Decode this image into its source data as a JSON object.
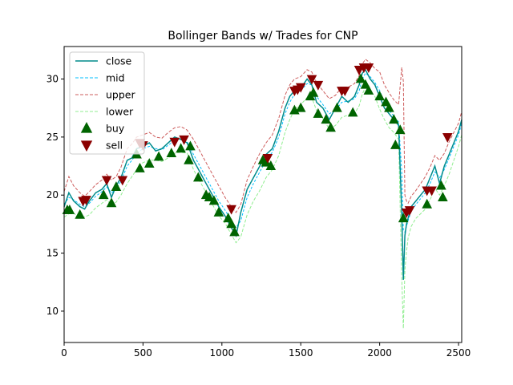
{
  "chart_data": {
    "type": "line",
    "title": "Bollinger Bands w/ Trades for CNP",
    "xlabel": "",
    "ylabel": "",
    "xlim": [
      0,
      2520
    ],
    "ylim": [
      7.3,
      32.8
    ],
    "xticks": [
      0,
      500,
      1000,
      1500,
      2000,
      2500
    ],
    "yticks": [
      10,
      15,
      20,
      25,
      30
    ],
    "grid": false,
    "legend_position": "top-left",
    "colors": {
      "close": "#008b8b",
      "mid": "#00bfff",
      "upper": "#cd5c5c",
      "lower": "#90ee90",
      "buy": "#006400",
      "sell": "#8b0000"
    },
    "series": [
      {
        "name": "close",
        "x": [
          0,
          30,
          60,
          100,
          130,
          160,
          200,
          240,
          270,
          300,
          330,
          360,
          400,
          430,
          460,
          500,
          540,
          580,
          620,
          660,
          700,
          740,
          780,
          820,
          860,
          900,
          940,
          980,
          1020,
          1060,
          1090,
          1120,
          1160,
          1200,
          1240,
          1280,
          1320,
          1360,
          1400,
          1430,
          1460,
          1500,
          1540,
          1570,
          1600,
          1640,
          1680,
          1720,
          1760,
          1800,
          1840,
          1870,
          1890,
          1910,
          1940,
          1970,
          2000,
          2030,
          2060,
          2090,
          2120,
          2140,
          2150,
          2160,
          2170,
          2180,
          2200,
          2230,
          2260,
          2290,
          2320,
          2350,
          2380,
          2410,
          2440,
          2470,
          2500,
          2520
        ],
        "y": [
          19.0,
          20.2,
          19.5,
          19.0,
          18.8,
          19.5,
          20.2,
          20.5,
          21.0,
          19.8,
          20.8,
          21.5,
          23.0,
          23.2,
          24.0,
          24.2,
          24.5,
          23.8,
          24.0,
          24.5,
          25.0,
          24.8,
          24.5,
          23.0,
          22.0,
          21.0,
          20.0,
          19.0,
          18.2,
          17.2,
          16.5,
          18.5,
          20.5,
          21.5,
          22.5,
          23.5,
          24.0,
          25.5,
          27.5,
          28.5,
          29.0,
          29.2,
          30.0,
          29.5,
          28.0,
          27.5,
          26.5,
          27.5,
          28.5,
          28.0,
          28.5,
          29.5,
          30.5,
          30.8,
          30.0,
          29.5,
          28.5,
          27.5,
          27.0,
          26.5,
          26.0,
          18.5,
          12.7,
          16.5,
          17.5,
          18.0,
          19.0,
          19.5,
          20.0,
          20.5,
          21.5,
          22.5,
          21.0,
          22.5,
          23.5,
          24.5,
          25.5,
          26.5
        ]
      },
      {
        "name": "mid",
        "x": [
          0,
          30,
          60,
          100,
          130,
          160,
          200,
          240,
          270,
          300,
          330,
          360,
          400,
          430,
          460,
          500,
          540,
          580,
          620,
          660,
          700,
          740,
          780,
          820,
          860,
          900,
          940,
          980,
          1020,
          1060,
          1090,
          1120,
          1160,
          1200,
          1240,
          1280,
          1320,
          1360,
          1400,
          1430,
          1460,
          1500,
          1540,
          1570,
          1600,
          1640,
          1680,
          1720,
          1760,
          1800,
          1840,
          1870,
          1890,
          1910,
          1940,
          1970,
          2000,
          2030,
          2060,
          2090,
          2120,
          2140,
          2150,
          2160,
          2170,
          2180,
          2200,
          2230,
          2260,
          2290,
          2320,
          2350,
          2380,
          2410,
          2440,
          2470,
          2500,
          2520
        ],
        "y": [
          19.2,
          19.8,
          19.6,
          19.2,
          19.0,
          19.3,
          19.9,
          20.3,
          20.7,
          20.2,
          20.5,
          21.2,
          22.5,
          23.0,
          23.6,
          24.0,
          24.2,
          24.0,
          23.9,
          24.3,
          24.7,
          24.8,
          24.6,
          23.5,
          22.5,
          21.5,
          20.5,
          19.5,
          18.7,
          17.8,
          17.2,
          17.8,
          19.8,
          21.0,
          22.0,
          23.0,
          23.7,
          25.0,
          27.0,
          28.0,
          28.7,
          29.0,
          29.6,
          29.5,
          28.5,
          27.8,
          27.0,
          27.3,
          28.0,
          28.1,
          28.3,
          29.0,
          30.0,
          30.5,
          30.2,
          29.7,
          29.0,
          28.0,
          27.3,
          26.8,
          26.3,
          22.0,
          17.0,
          16.8,
          17.3,
          17.8,
          18.6,
          19.2,
          19.7,
          20.2,
          21.0,
          22.0,
          21.5,
          22.2,
          23.2,
          24.2,
          25.2,
          26.2
        ]
      },
      {
        "name": "upper",
        "x": [
          0,
          30,
          60,
          100,
          130,
          160,
          200,
          240,
          270,
          300,
          330,
          360,
          400,
          430,
          460,
          500,
          540,
          580,
          620,
          660,
          700,
          740,
          780,
          820,
          860,
          900,
          940,
          980,
          1020,
          1060,
          1090,
          1120,
          1160,
          1200,
          1240,
          1280,
          1320,
          1360,
          1400,
          1430,
          1460,
          1500,
          1540,
          1570,
          1600,
          1640,
          1680,
          1720,
          1760,
          1800,
          1840,
          1870,
          1890,
          1910,
          1940,
          1970,
          2000,
          2030,
          2060,
          2090,
          2120,
          2140,
          2150,
          2160,
          2170,
          2180,
          2200,
          2230,
          2260,
          2290,
          2320,
          2350,
          2380,
          2410,
          2440,
          2470,
          2500,
          2520
        ],
        "y": [
          20.3,
          21.6,
          20.8,
          20.2,
          19.9,
          20.3,
          20.9,
          21.3,
          21.8,
          21.3,
          21.6,
          22.4,
          24.0,
          24.4,
          25.0,
          25.2,
          25.4,
          25.0,
          24.9,
          25.4,
          25.8,
          25.9,
          25.6,
          24.8,
          23.8,
          22.8,
          21.8,
          20.8,
          19.8,
          19.0,
          18.5,
          19.2,
          21.3,
          22.5,
          23.6,
          24.5,
          25.2,
          26.6,
          28.6,
          29.5,
          30.0,
          30.2,
          30.8,
          30.6,
          29.7,
          29.0,
          28.3,
          28.6,
          29.3,
          29.3,
          29.6,
          30.3,
          31.3,
          31.7,
          31.4,
          30.9,
          30.6,
          29.5,
          28.8,
          28.2,
          27.8,
          31.0,
          29.8,
          20.0,
          19.5,
          19.3,
          19.9,
          20.4,
          21.0,
          21.6,
          22.4,
          23.4,
          23.0,
          23.6,
          24.6,
          25.4,
          26.2,
          27.2
        ]
      },
      {
        "name": "lower",
        "x": [
          0,
          30,
          60,
          100,
          130,
          160,
          200,
          240,
          270,
          300,
          330,
          360,
          400,
          430,
          460,
          500,
          540,
          580,
          620,
          660,
          700,
          740,
          780,
          820,
          860,
          900,
          940,
          980,
          1020,
          1060,
          1090,
          1120,
          1160,
          1200,
          1240,
          1280,
          1320,
          1360,
          1400,
          1430,
          1460,
          1500,
          1540,
          1570,
          1600,
          1640,
          1680,
          1720,
          1760,
          1800,
          1840,
          1870,
          1890,
          1910,
          1940,
          1970,
          2000,
          2030,
          2060,
          2090,
          2120,
          2140,
          2150,
          2160,
          2170,
          2180,
          2200,
          2230,
          2260,
          2290,
          2320,
          2350,
          2380,
          2410,
          2440,
          2470,
          2500,
          2520
        ],
        "y": [
          18.1,
          18.4,
          18.4,
          18.2,
          18.1,
          18.3,
          18.9,
          19.3,
          19.6,
          19.1,
          19.4,
          20.0,
          21.0,
          21.6,
          22.2,
          22.8,
          23.0,
          23.0,
          22.9,
          23.2,
          23.6,
          23.7,
          23.6,
          22.2,
          21.2,
          20.2,
          19.2,
          18.2,
          17.6,
          16.6,
          15.9,
          16.4,
          18.3,
          19.5,
          20.4,
          21.5,
          22.2,
          23.4,
          25.4,
          26.5,
          27.4,
          27.8,
          28.4,
          28.4,
          27.3,
          26.6,
          25.7,
          26.0,
          26.7,
          26.9,
          27.0,
          27.7,
          28.7,
          29.3,
          29.0,
          28.5,
          27.4,
          26.5,
          25.8,
          25.4,
          24.8,
          13.0,
          8.5,
          13.5,
          15.1,
          16.3,
          17.3,
          18.0,
          18.4,
          18.8,
          19.6,
          20.6,
          20.0,
          20.8,
          21.8,
          23.0,
          24.2,
          25.2
        ]
      },
      {
        "name": "buy",
        "x": [
          20,
          35,
          100,
          250,
          300,
          330,
          460,
          480,
          540,
          600,
          680,
          740,
          790,
          800,
          850,
          900,
          920,
          950,
          980,
          1040,
          1060,
          1080,
          1260,
          1280,
          1310,
          1460,
          1500,
          1560,
          1580,
          1610,
          1660,
          1690,
          1730,
          1830,
          1880,
          1910,
          1930,
          2000,
          2040,
          2060,
          2090,
          2100,
          2130,
          2150,
          2300,
          2390,
          2400
        ],
        "y": [
          18.7,
          18.7,
          18.3,
          20.0,
          19.3,
          20.7,
          23.5,
          22.3,
          22.7,
          23.3,
          23.6,
          24.0,
          23.0,
          24.2,
          21.5,
          20.0,
          19.8,
          19.5,
          18.5,
          18.0,
          17.5,
          16.8,
          23.0,
          22.8,
          22.5,
          27.3,
          27.5,
          28.5,
          28.8,
          27.0,
          26.5,
          25.8,
          27.5,
          27.1,
          30.0,
          29.5,
          29.0,
          28.5,
          28.0,
          27.5,
          26.5,
          24.3,
          25.6,
          18.0,
          19.2,
          20.8,
          19.8
        ]
      },
      {
        "name": "sell",
        "x": [
          120,
          140,
          270,
          370,
          480,
          500,
          700,
          760,
          1060,
          1290,
          1460,
          1480,
          1500,
          1570,
          1610,
          1760,
          1780,
          1870,
          1900,
          1930,
          2170,
          2190,
          2300,
          2330,
          2430
        ],
        "y": [
          19.5,
          19.6,
          21.3,
          21.3,
          24.5,
          24.3,
          24.6,
          24.8,
          18.8,
          23.2,
          29.0,
          29.1,
          29.3,
          30.0,
          29.5,
          29.0,
          29.0,
          30.8,
          31.0,
          31.0,
          18.5,
          18.7,
          20.4,
          20.4,
          25.0
        ]
      }
    ]
  },
  "legend": {
    "items": [
      {
        "label": "close",
        "style": "line",
        "color": "#008b8b"
      },
      {
        "label": "mid",
        "style": "dashed",
        "color": "#00bfff"
      },
      {
        "label": "upper",
        "style": "dashed",
        "color": "#cd5c5c"
      },
      {
        "label": "lower",
        "style": "dashed",
        "color": "#90ee90"
      },
      {
        "label": "buy",
        "style": "triangle-up",
        "color": "#006400"
      },
      {
        "label": "sell",
        "style": "triangle-down",
        "color": "#8b0000"
      }
    ]
  }
}
